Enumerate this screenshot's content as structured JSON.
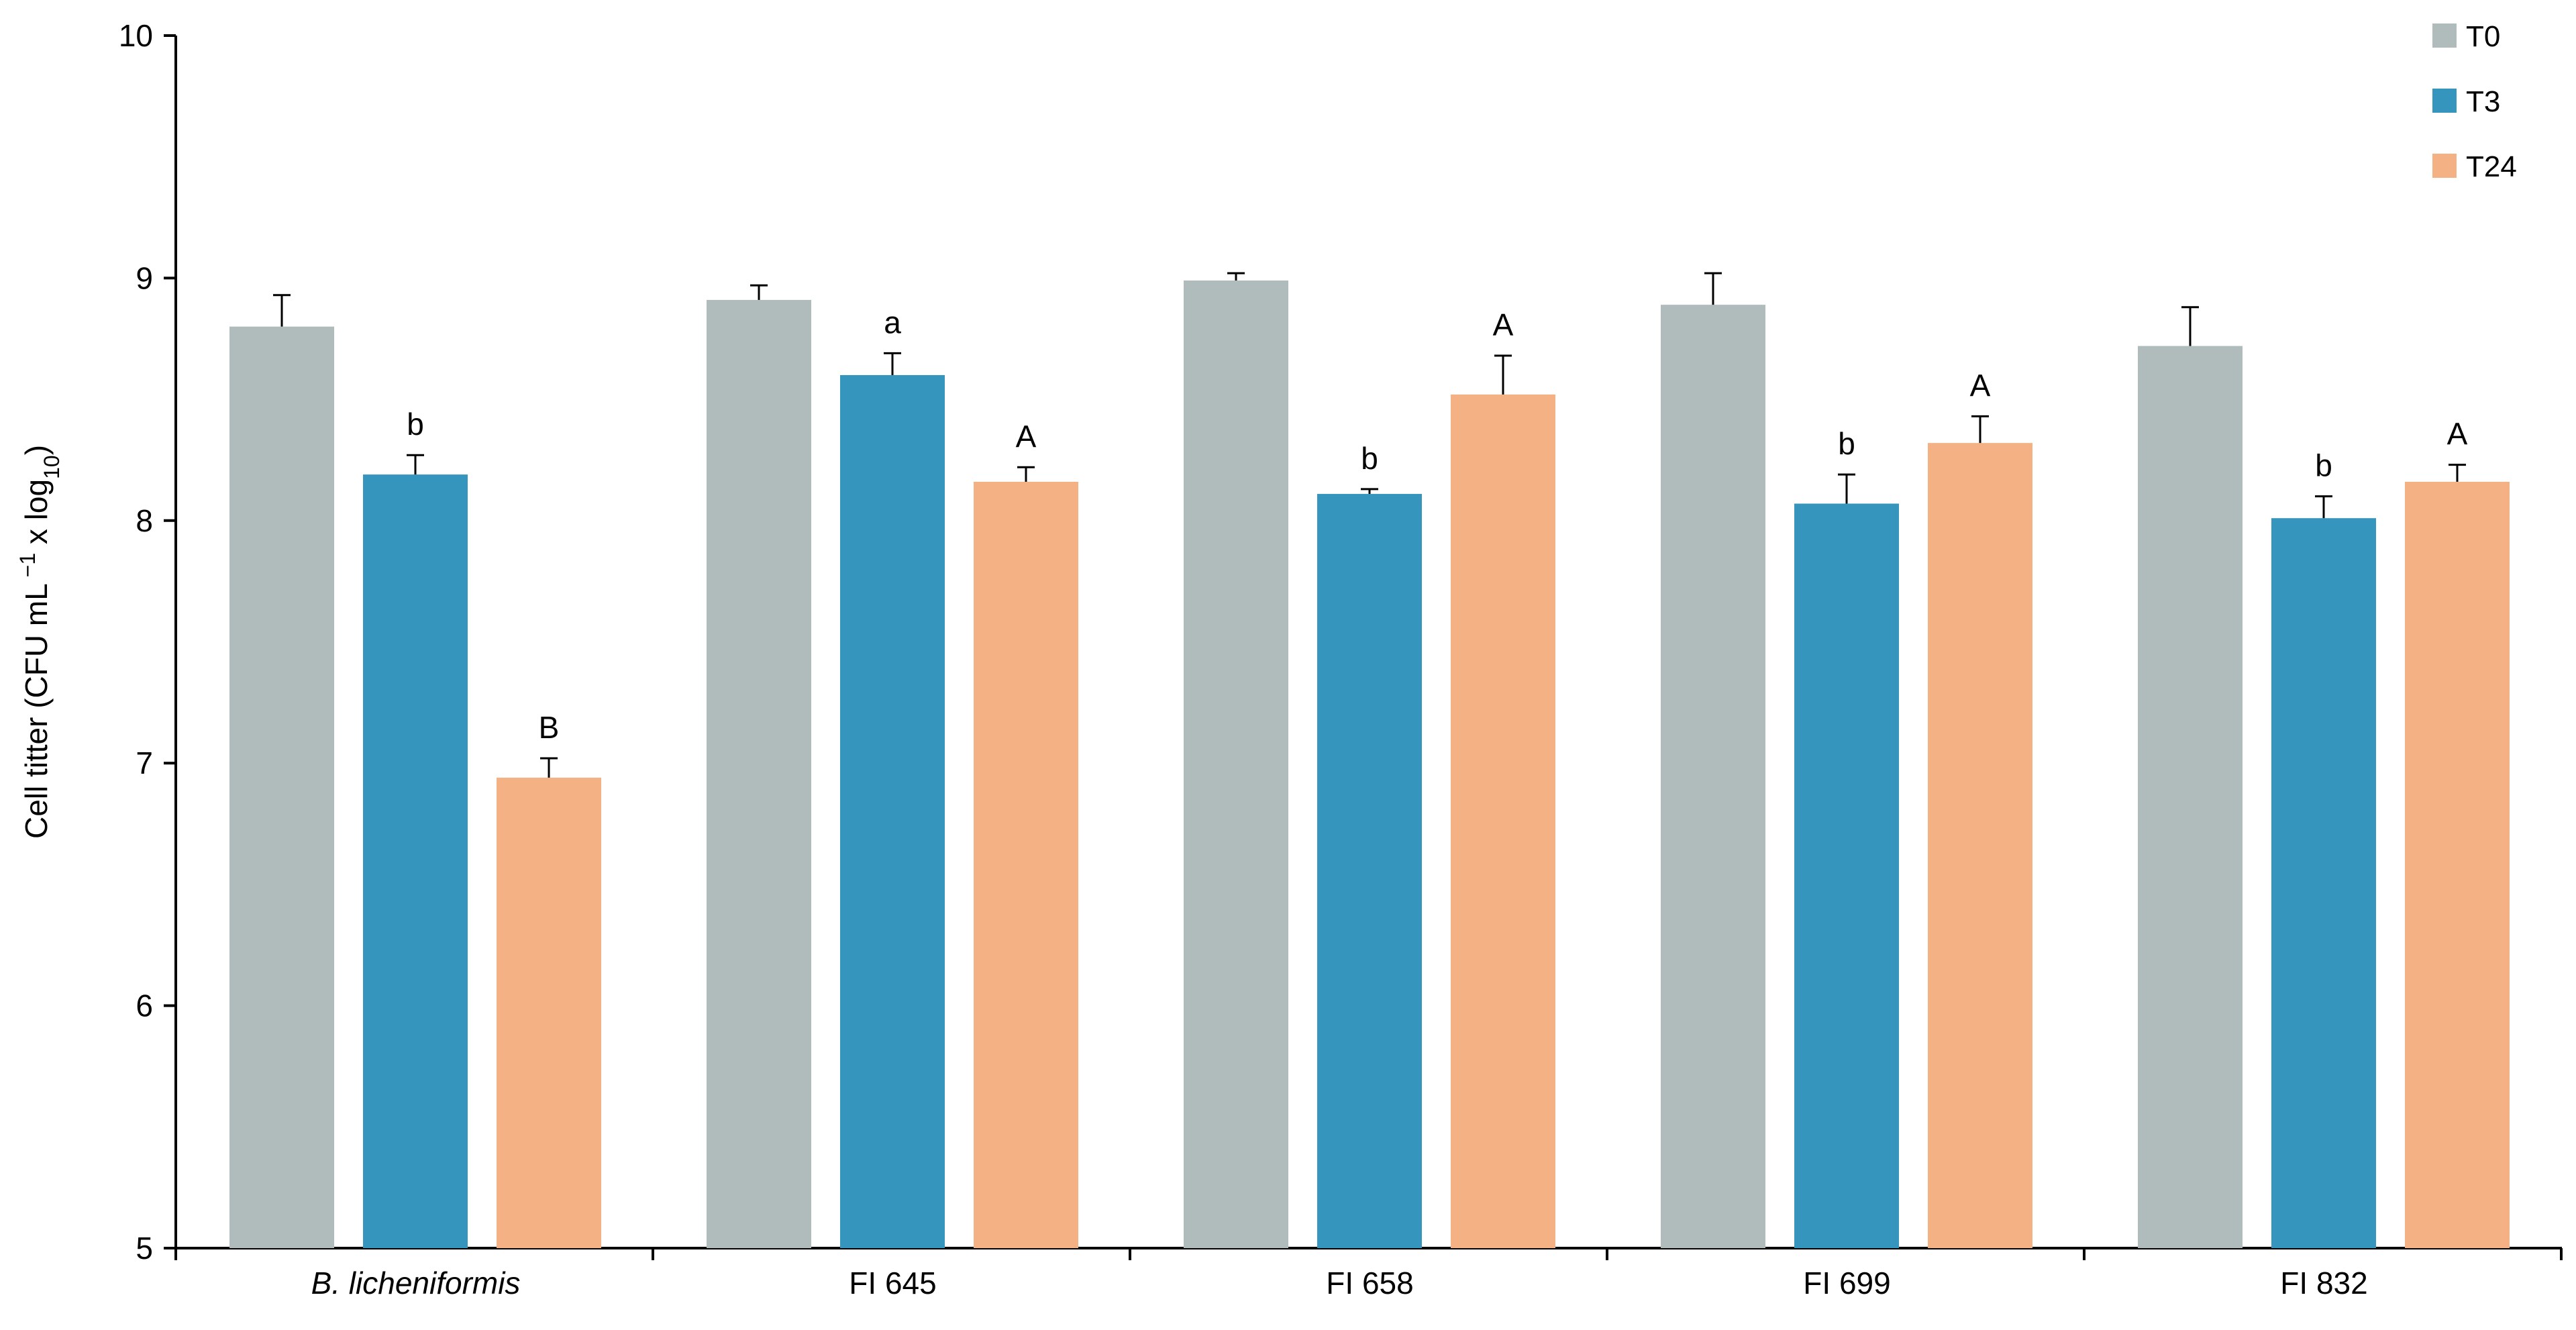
{
  "chart_data": {
    "type": "bar",
    "ylabel": "Cell titter (CFU mL⁻¹ x log₁₀)",
    "ylabel_parts": {
      "prefix": "Cell titter (CFU mL",
      "sup": " −1",
      "middle": " x log",
      "sub": "10",
      "suffix": ")"
    },
    "xlabel": "",
    "ylim": [
      5,
      10
    ],
    "yticks": [
      5,
      6,
      7,
      8,
      9,
      10
    ],
    "categories": [
      "B. licheniformis",
      "FI 645",
      "FI 658",
      "FI 699",
      "FI 832"
    ],
    "italic_categories": [
      "B. licheniformis"
    ],
    "legend_position": "top-right",
    "grid": false,
    "series": [
      {
        "name": "T0",
        "color": "#b0bbbb",
        "values": [
          8.8,
          8.91,
          8.99,
          8.89,
          8.72
        ],
        "errors": [
          0.13,
          0.06,
          0.03,
          0.13,
          0.16
        ],
        "labels": [
          "",
          "",
          "",
          "",
          ""
        ]
      },
      {
        "name": "T3",
        "color": "#3695bd",
        "values": [
          8.19,
          8.6,
          8.11,
          8.07,
          8.01
        ],
        "errors": [
          0.08,
          0.09,
          0.02,
          0.12,
          0.09
        ],
        "labels": [
          "b",
          "a",
          "b",
          "b",
          "b"
        ]
      },
      {
        "name": "T24",
        "color": "#f4b183",
        "values": [
          6.94,
          8.16,
          8.52,
          8.32,
          8.16
        ],
        "errors": [
          0.08,
          0.06,
          0.16,
          0.11,
          0.07
        ],
        "labels": [
          "B",
          "A",
          "A",
          "A",
          "A"
        ]
      }
    ]
  }
}
